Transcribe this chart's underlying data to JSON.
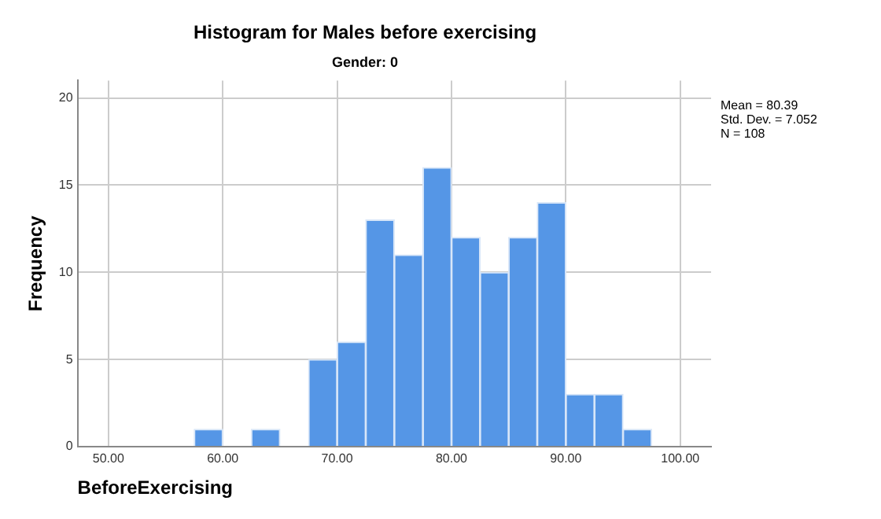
{
  "chart_data": {
    "type": "histogram",
    "title": "Histogram for Males before exercising",
    "subtitle": "Gender: 0",
    "xlabel": "BeforeExercising",
    "ylabel": "Frequency",
    "bins": [
      57.5,
      60,
      62.5,
      65,
      67.5,
      70,
      72.5,
      75,
      77.5,
      80,
      82.5,
      85,
      87.5,
      90,
      92.5,
      95,
      97.5
    ],
    "values": [
      1,
      0,
      1,
      0,
      5,
      6,
      13,
      11,
      16,
      12,
      10,
      12,
      14,
      3,
      3,
      1
    ],
    "color": "#5596e6",
    "xlim": [
      47.3,
      102.7
    ],
    "xticks": [
      {
        "value": 50,
        "label": "50.00"
      },
      {
        "value": 60,
        "label": "60.00"
      },
      {
        "value": 70,
        "label": "70.00"
      },
      {
        "value": 80,
        "label": "80.00"
      },
      {
        "value": 90,
        "label": "90.00"
      },
      {
        "value": 100,
        "label": "100.00"
      }
    ],
    "ylim": [
      0,
      21
    ],
    "yticks": [
      0,
      5,
      10,
      15,
      20
    ],
    "grid": true,
    "annotations": [
      "Mean = 80.39\nStd. Dev. = 7.052\nN = 108"
    ]
  }
}
